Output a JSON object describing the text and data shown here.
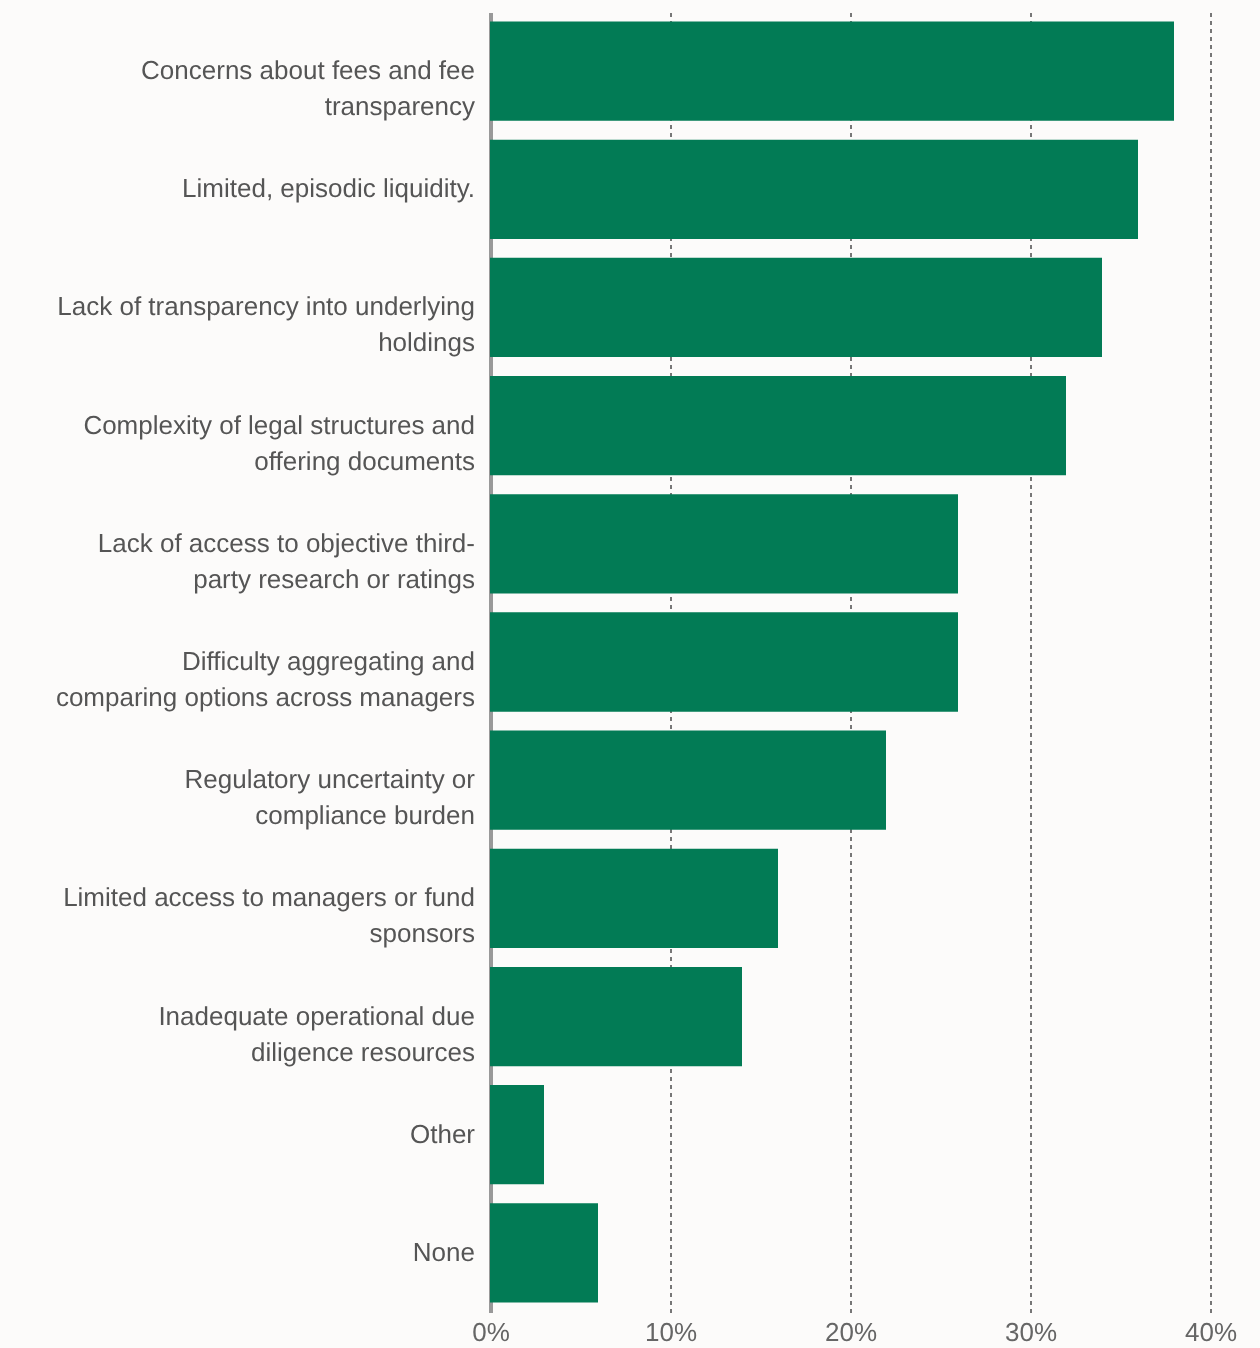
{
  "chart_data": {
    "type": "bar",
    "orientation": "horizontal",
    "categories": [
      "Concerns about fees and fee\ntransparency",
      "Limited, episodic liquidity.",
      "Lack of transparency into underlying\nholdings",
      "Complexity of legal structures and\noffering documents",
      "Lack of access to objective third-\nparty research or ratings",
      "Difficulty aggregating and\ncomparing options across managers",
      "Regulatory uncertainty or\ncompliance burden",
      "Limited access to managers or fund\nsponsors",
      "Inadequate operational due\ndiligence resources",
      "Other",
      "None"
    ],
    "values": [
      38,
      36,
      34,
      32,
      26,
      26,
      22,
      16,
      14,
      3,
      6
    ],
    "color": "#027b55",
    "xlim": [
      0,
      40
    ],
    "xticks": [
      {
        "value": 0,
        "label": "0%"
      },
      {
        "value": 10,
        "label": "10%"
      },
      {
        "value": 20,
        "label": "20%"
      },
      {
        "value": 30,
        "label": "30%"
      },
      {
        "value": 40,
        "label": "40%"
      }
    ],
    "grid": "x"
  }
}
